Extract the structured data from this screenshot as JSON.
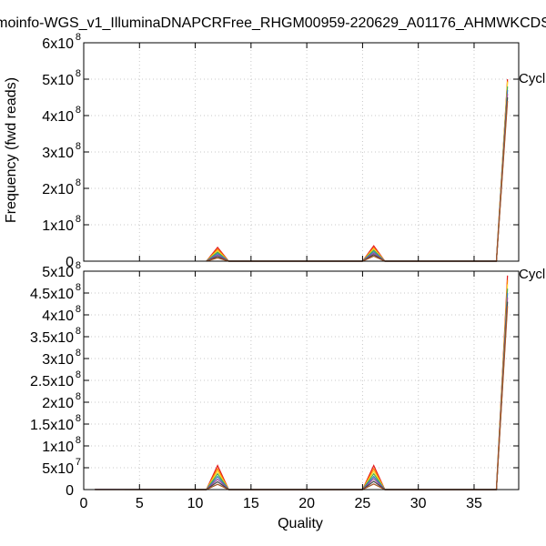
{
  "chart_data": {
    "type": "line",
    "title": "moinfo-WGS_v1_IlluminaDNAPCRFree_RHGM00959-220629_A01176_AHMWKCDS",
    "xlabel": "Quality",
    "ylabel": "Frequency (fwd reads)",
    "legend_label": "Cycl",
    "legend_position": "top-right",
    "grid": true,
    "xlim": [
      0,
      39
    ],
    "x_ticks": [
      0,
      5,
      10,
      15,
      20,
      25,
      30,
      35
    ],
    "panels": [
      {
        "id": "top",
        "ylim": [
          0,
          600000000
        ],
        "y_ticks": [
          {
            "value": 0,
            "base": "0",
            "exp": ""
          },
          {
            "value": 100000000,
            "base": "1x10",
            "exp": "8"
          },
          {
            "value": 200000000,
            "base": "2x10",
            "exp": "8"
          },
          {
            "value": 300000000,
            "base": "3x10",
            "exp": "8"
          },
          {
            "value": 400000000,
            "base": "4x10",
            "exp": "8"
          },
          {
            "value": 500000000,
            "base": "5x10",
            "exp": "8"
          },
          {
            "value": 600000000,
            "base": "6x10",
            "exp": "8"
          }
        ],
        "x": [
          11,
          12,
          13,
          25,
          26,
          27,
          37,
          38
        ],
        "series": [
          {
            "color": "#e41a1c",
            "values": [
              0,
              38000000,
              0,
              0,
              42000000,
              0,
              0,
              500000000
            ]
          },
          {
            "color": "#ff7f00",
            "values": [
              0,
              33000000,
              0,
              0,
              37000000,
              0,
              0,
              495000000
            ]
          },
          {
            "color": "#ffd92f",
            "values": [
              0,
              29000000,
              0,
              0,
              34000000,
              0,
              0,
              492000000
            ]
          },
          {
            "color": "#4daf4a",
            "values": [
              0,
              25000000,
              0,
              0,
              30000000,
              0,
              0,
              480000000
            ]
          },
          {
            "color": "#377eb8",
            "values": [
              0,
              21000000,
              0,
              0,
              26000000,
              0,
              0,
              470000000
            ]
          },
          {
            "color": "#984ea3",
            "values": [
              0,
              17000000,
              0,
              0,
              22000000,
              0,
              0,
              460000000
            ]
          },
          {
            "color": "#444444",
            "values": [
              0,
              13000000,
              0,
              0,
              18000000,
              0,
              0,
              450000000
            ]
          },
          {
            "color": "#a65628",
            "values": [
              0,
              9000000,
              0,
              0,
              14000000,
              0,
              0,
              440000000
            ]
          }
        ]
      },
      {
        "id": "bottom",
        "ylim": [
          0,
          500000000
        ],
        "y_ticks": [
          {
            "value": 0,
            "base": "0",
            "exp": ""
          },
          {
            "value": 50000000,
            "base": "5x10",
            "exp": "7"
          },
          {
            "value": 100000000,
            "base": "1x10",
            "exp": "8"
          },
          {
            "value": 150000000,
            "base": "1.5x10",
            "exp": "8"
          },
          {
            "value": 200000000,
            "base": "2x10",
            "exp": "8"
          },
          {
            "value": 250000000,
            "base": "2.5x10",
            "exp": "8"
          },
          {
            "value": 300000000,
            "base": "3x10",
            "exp": "8"
          },
          {
            "value": 350000000,
            "base": "3.5x10",
            "exp": "8"
          },
          {
            "value": 400000000,
            "base": "4x10",
            "exp": "8"
          },
          {
            "value": 450000000,
            "base": "4.5x10",
            "exp": "8"
          },
          {
            "value": 500000000,
            "base": "5x10",
            "exp": "8"
          }
        ],
        "x": [
          1,
          2,
          11,
          12,
          13,
          25,
          26,
          27,
          37,
          38
        ],
        "series": [
          {
            "color": "#e41a1c",
            "values": [
              500000,
              500000,
              0,
              55000000,
              0,
              0,
              55000000,
              0,
              0,
              490000000
            ]
          },
          {
            "color": "#ff7f00",
            "values": [
              400000,
              400000,
              0,
              48000000,
              0,
              0,
              48000000,
              0,
              0,
              480000000
            ]
          },
          {
            "color": "#ffd92f",
            "values": [
              300000,
              300000,
              0,
              42000000,
              0,
              0,
              42000000,
              0,
              0,
              470000000
            ]
          },
          {
            "color": "#4daf4a",
            "values": [
              300000,
              300000,
              0,
              36000000,
              0,
              0,
              36000000,
              0,
              0,
              460000000
            ]
          },
          {
            "color": "#377eb8",
            "values": [
              200000,
              200000,
              0,
              30000000,
              0,
              0,
              30000000,
              0,
              0,
              450000000
            ]
          },
          {
            "color": "#984ea3",
            "values": [
              200000,
              200000,
              0,
              24000000,
              0,
              0,
              25000000,
              0,
              0,
              440000000
            ]
          },
          {
            "color": "#444444",
            "values": [
              100000,
              100000,
              0,
              18000000,
              0,
              0,
              19000000,
              0,
              0,
              430000000
            ]
          },
          {
            "color": "#a65628",
            "values": [
              100000,
              100000,
              0,
              12000000,
              0,
              0,
              13000000,
              0,
              0,
              420000000
            ]
          }
        ]
      }
    ]
  }
}
